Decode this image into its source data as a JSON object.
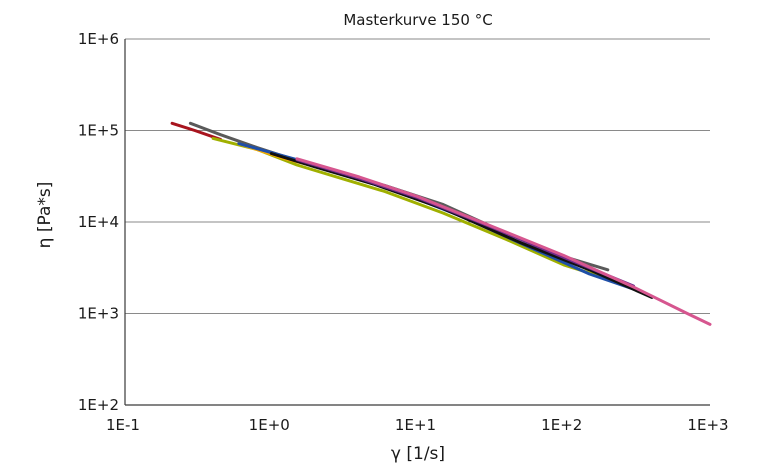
{
  "chart_data": {
    "type": "line",
    "title": "Masterkurve 150 °C",
    "xlabel": "γ [1/s]",
    "ylabel": "η [Pa*s]",
    "x_scale": "log",
    "y_scale": "log",
    "xlim": [
      0.1,
      1000
    ],
    "ylim": [
      100,
      1000000
    ],
    "x_ticks": [
      "1E-1",
      "1E+0",
      "1E+1",
      "1E+2",
      "1E+3"
    ],
    "y_ticks": [
      "1E+2",
      "1E+3",
      "1E+4",
      "1E+5",
      "1E+6"
    ],
    "grid": "horizontal",
    "series": [
      {
        "color": "#a8141e",
        "x": [
          0.21,
          0.3,
          0.45
        ],
        "y": [
          120000,
          100000,
          80000
        ]
      },
      {
        "color": "#5a5a5a",
        "x": [
          0.28,
          0.45,
          0.8,
          1.5,
          3,
          6,
          15,
          40,
          100,
          200
        ],
        "y": [
          120000,
          90000,
          65000,
          47000,
          34000,
          25000,
          15500,
          7600,
          4200,
          3000
        ]
      },
      {
        "color": "#a0b000",
        "x": [
          0.4,
          0.8,
          1.5,
          3,
          6,
          15,
          40,
          100,
          200
        ],
        "y": [
          82000,
          62000,
          42000,
          30000,
          21500,
          12500,
          6500,
          3400,
          2400
        ]
      },
      {
        "color": "#ffaa00",
        "x": [
          0.6,
          1.2,
          2.5,
          5
        ],
        "y": [
          72000,
          50000,
          37000,
          27000
        ]
      },
      {
        "color": "#1f4fa8",
        "x": [
          0.6,
          1.5,
          3,
          8,
          20,
          60,
          150,
          350
        ],
        "y": [
          72000,
          48000,
          34000,
          20500,
          11500,
          5200,
          2700,
          1700
        ]
      },
      {
        "color": "#111111",
        "x": [
          1,
          2,
          5,
          15,
          50,
          150,
          400
        ],
        "y": [
          56000,
          40000,
          26000,
          14000,
          6000,
          3000,
          1500
        ]
      },
      {
        "color": "#6e2a8c",
        "x": [
          1.5,
          4,
          10,
          30,
          100,
          300
        ],
        "y": [
          48000,
          30000,
          18500,
          9200,
          4100,
          2000
        ]
      },
      {
        "color": "#d6568f",
        "x": [
          1.5,
          4,
          10,
          30,
          100,
          300,
          700,
          1000
        ],
        "y": [
          49000,
          31000,
          19000,
          9400,
          4300,
          1950,
          1000,
          760
        ]
      }
    ]
  }
}
